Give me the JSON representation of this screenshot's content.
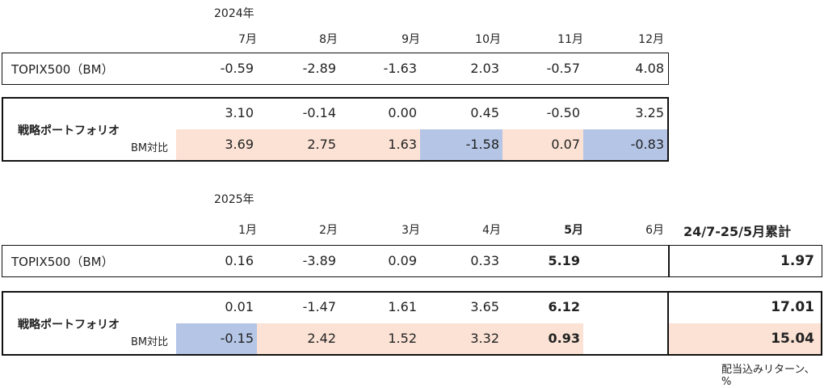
{
  "section1": {
    "year": "2024年",
    "months": [
      "7月",
      "8月",
      "9月",
      "10月",
      "11月",
      "12月"
    ],
    "bm_label": "TOPIX500（BM）",
    "bm_values": [
      "-0.59",
      "-2.89",
      "-1.63",
      "2.03",
      "-0.57",
      "4.08"
    ],
    "strategy_label": "戦略ポートフォリオ",
    "strategy_values": [
      "3.10",
      "-0.14",
      "0.00",
      "0.45",
      "-0.50",
      "3.25"
    ],
    "diff_label": "BM対比",
    "diff_values": [
      "3.69",
      "2.75",
      "1.63",
      "-1.58",
      "0.07",
      "-0.83"
    ]
  },
  "section2": {
    "year": "2025年",
    "months": [
      "1月",
      "2月",
      "3月",
      "4月",
      "5月",
      "6月"
    ],
    "cumulative_header": "24/7-25/5月累計",
    "bm_label": "TOPIX500（BM）",
    "bm_values": [
      "0.16",
      "-3.89",
      "0.09",
      "0.33",
      "5.19",
      ""
    ],
    "bm_cumulative": "1.97",
    "strategy_label": "戦略ポートフォリオ",
    "strategy_values": [
      "0.01",
      "-1.47",
      "1.61",
      "3.65",
      "6.12",
      ""
    ],
    "strategy_cumulative": "17.01",
    "diff_label": "BM対比",
    "diff_values": [
      "-0.15",
      "2.42",
      "1.52",
      "3.32",
      "0.93",
      ""
    ],
    "diff_cumulative": "15.04"
  },
  "footnote": "配当込みリターン、%",
  "colors": {
    "positive_bg": "#fbe2d4",
    "negative_bg": "#b4c5e6"
  }
}
